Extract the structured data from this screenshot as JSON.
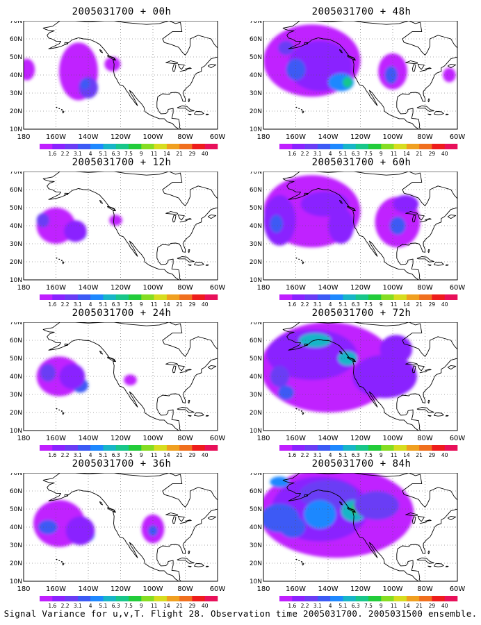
{
  "panels": [
    {
      "title": "2005031700 + 00h",
      "lead": "00h"
    },
    {
      "title": "2005031700 + 48h",
      "lead": "48h"
    },
    {
      "title": "2005031700 + 12h",
      "lead": "12h"
    },
    {
      "title": "2005031700 + 60h",
      "lead": "60h"
    },
    {
      "title": "2005031700 + 24h",
      "lead": "24h"
    },
    {
      "title": "2005031700 + 72h",
      "lead": "72h"
    },
    {
      "title": "2005031700 + 36h",
      "lead": "36h"
    },
    {
      "title": "2005031700 + 84h",
      "lead": "84h"
    }
  ],
  "axes": {
    "lat_labels": [
      "70N",
      "60N",
      "50N",
      "40N",
      "30N",
      "20N",
      "10N"
    ],
    "lon_labels": [
      "180",
      "160W",
      "140W",
      "120W",
      "100W",
      "80W",
      "60W"
    ]
  },
  "colorbar": {
    "labels": [
      "1.6",
      "2.2",
      "3.1",
      "4",
      "5.1",
      "6.3",
      "7.5",
      "9",
      "11",
      "14",
      "21",
      "29",
      "40"
    ],
    "colors": [
      "#c020ff",
      "#8a22ff",
      "#6a3cf5",
      "#3c5af5",
      "#1e88ff",
      "#17b5c8",
      "#18c78a",
      "#22cc3a",
      "#86dd22",
      "#d7dd1f",
      "#f0a020",
      "#f06f1e",
      "#ee1c1c",
      "#e8105a"
    ]
  },
  "caption": "Signal Variance for u,v,T. Flight 28. Observation time 2005031700. 2005031500 ensemble."
}
